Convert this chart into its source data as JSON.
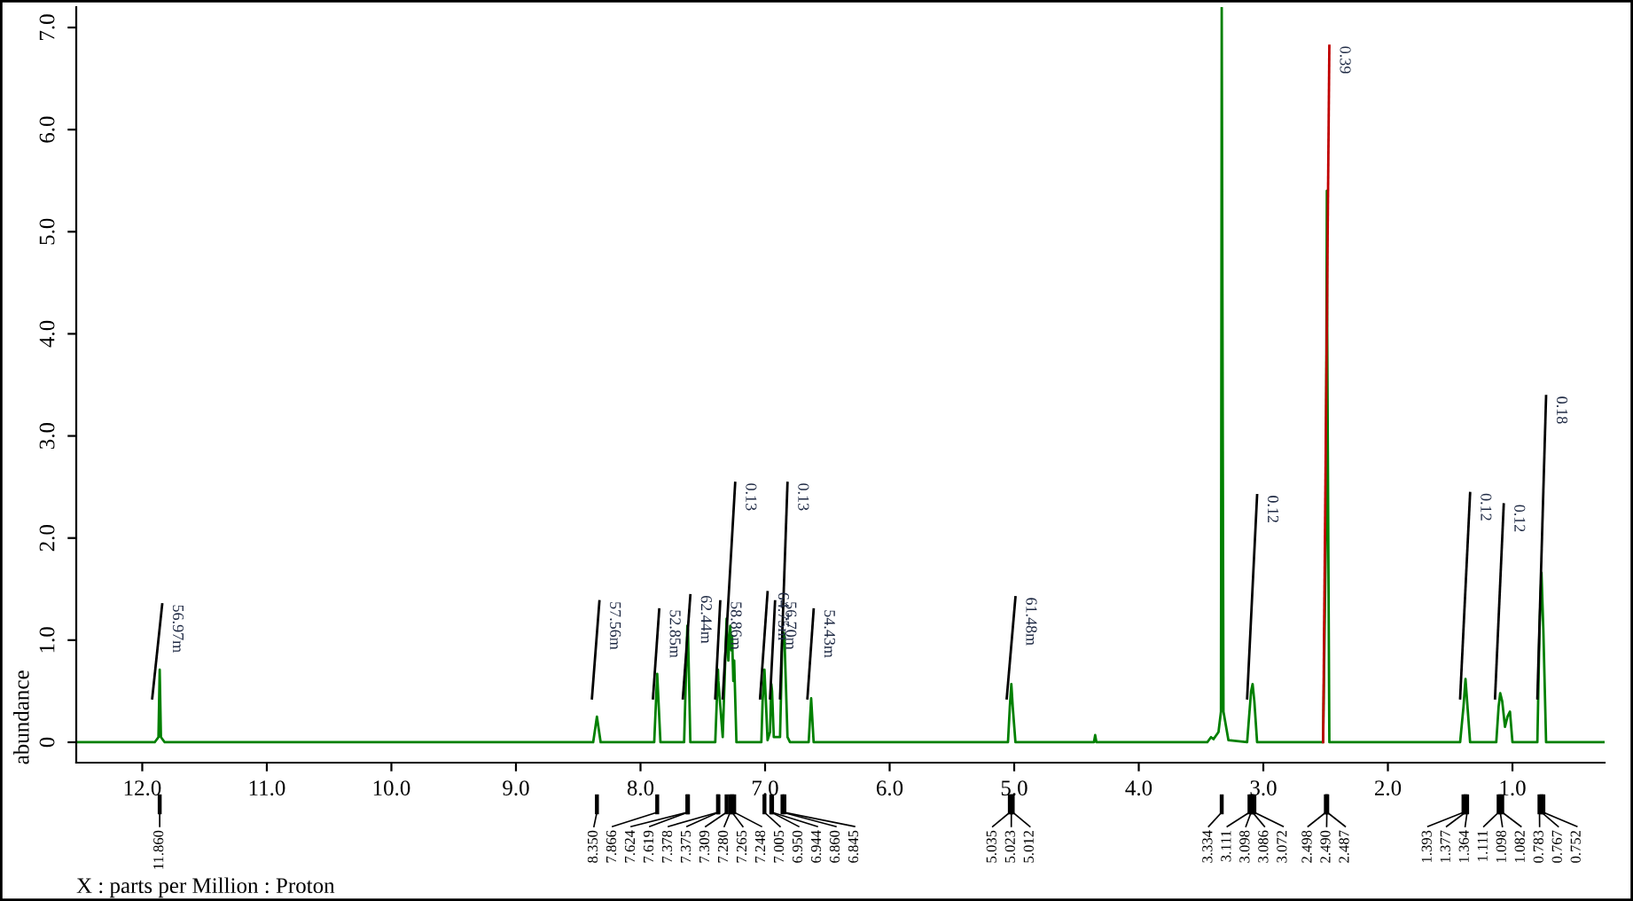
{
  "chart_data": {
    "type": "line",
    "xlabel": "X : parts per Million : Proton",
    "ylabel": "abundance",
    "xlim": [
      12.53,
      0.26
    ],
    "xticks": [
      {
        "value": 12,
        "label": "12.0"
      },
      {
        "value": 11,
        "label": "11.0"
      },
      {
        "value": 10,
        "label": "10.0"
      },
      {
        "value": 9,
        "label": "9.0"
      },
      {
        "value": 8,
        "label": "8.0"
      },
      {
        "value": 7,
        "label": "7.0"
      },
      {
        "value": 6,
        "label": "6.0"
      },
      {
        "value": 5,
        "label": "5.0"
      },
      {
        "value": 4,
        "label": "4.0"
      },
      {
        "value": 3,
        "label": "3.0"
      },
      {
        "value": 2,
        "label": "2.0"
      },
      {
        "value": 1,
        "label": "1.0"
      }
    ],
    "ylim": [
      -0.2,
      7.2
    ],
    "yticks": [
      0,
      {
        "value": 1,
        "label": "1.0"
      },
      {
        "value": 2,
        "label": "2.0"
      },
      {
        "value": 3,
        "label": "3.0"
      },
      {
        "value": 4,
        "label": "4.0"
      },
      {
        "value": 5,
        "label": "5.0"
      },
      {
        "value": 6,
        "label": "6.0"
      },
      {
        "value": 7,
        "label": "7.0"
      }
    ],
    "grid": false,
    "marker": "none",
    "line_style": "solid",
    "series": [
      {
        "color": "#008000",
        "x": [
          12.53,
          11.9,
          11.87,
          11.86,
          11.85,
          11.82,
          8.38,
          8.35,
          8.32,
          7.89,
          7.866,
          7.84,
          7.65,
          7.624,
          7.619,
          7.6,
          7.4,
          7.378,
          7.375,
          7.34,
          7.309,
          7.295,
          7.28,
          7.27,
          7.265,
          7.255,
          7.248,
          7.23,
          7.03,
          7.02,
          7.005,
          6.99,
          6.98,
          6.96,
          6.95,
          6.944,
          6.93,
          6.88,
          6.86,
          6.845,
          6.82,
          6.8,
          6.65,
          6.63,
          6.61,
          5.05,
          5.035,
          5.023,
          5.012,
          4.99,
          4.36,
          4.35,
          4.34,
          3.45,
          3.42,
          3.4,
          3.36,
          3.34,
          3.334,
          3.32,
          3.28,
          3.13,
          3.111,
          3.098,
          3.086,
          3.072,
          3.05,
          2.52,
          2.498,
          2.49,
          2.487,
          2.47,
          1.42,
          1.393,
          1.377,
          1.364,
          1.34,
          1.13,
          1.111,
          1.098,
          1.082,
          1.06,
          1.04,
          1.02,
          1.0,
          0.8,
          0.783,
          0.767,
          0.752,
          0.73,
          0.26
        ],
        "values": [
          0,
          0,
          0.05,
          0.71,
          0.05,
          0,
          0,
          0.25,
          0,
          0,
          0.67,
          0,
          0,
          1.14,
          1.1,
          0,
          0,
          0.71,
          0.6,
          0.05,
          1.21,
          0.8,
          1.14,
          0.9,
          1.04,
          0.6,
          0.8,
          0,
          0,
          0.4,
          0.71,
          0.3,
          0.02,
          0.1,
          0.57,
          0.5,
          0.05,
          0.05,
          1.09,
          1.05,
          0.05,
          0,
          0,
          0.43,
          0,
          0,
          0.35,
          0.57,
          0.35,
          0,
          0,
          0.07,
          0,
          0,
          0.05,
          0.03,
          0.1,
          0.3,
          7.2,
          0.3,
          0.02,
          0,
          0.3,
          0.5,
          0.57,
          0.4,
          0,
          0,
          2.0,
          5.4,
          4.0,
          0,
          0,
          0.35,
          0.62,
          0.4,
          0,
          0,
          0.35,
          0.48,
          0.4,
          0.15,
          0.25,
          0.3,
          0,
          0,
          1.1,
          1.66,
          1.1,
          0,
          0
        ]
      },
      {
        "color": "#000000",
        "x": [
          11.92,
          11.84
        ],
        "values": [
          0.43,
          1.35
        ]
      },
      {
        "color": "#000000",
        "x": [
          8.39,
          8.33
        ],
        "values": [
          0.43,
          1.38
        ]
      },
      {
        "color": "#000000",
        "x": [
          7.9,
          7.85
        ],
        "values": [
          0.43,
          1.3
        ]
      },
      {
        "color": "#000000",
        "x": [
          7.66,
          7.6
        ],
        "values": [
          0.43,
          1.44
        ]
      },
      {
        "color": "#000000",
        "x": [
          7.4,
          7.36
        ],
        "values": [
          0.43,
          1.38
        ]
      },
      {
        "color": "#000000",
        "x": [
          7.34,
          7.24
        ],
        "values": [
          0.43,
          2.54
        ]
      },
      {
        "color": "#000000",
        "x": [
          7.04,
          6.98
        ],
        "values": [
          0.43,
          1.47
        ]
      },
      {
        "color": "#000000",
        "x": [
          6.96,
          6.92
        ],
        "values": [
          0.43,
          1.38
        ]
      },
      {
        "color": "#000000",
        "x": [
          6.88,
          6.82
        ],
        "values": [
          0.43,
          2.54
        ]
      },
      {
        "color": "#000000",
        "x": [
          6.66,
          6.61
        ],
        "values": [
          0.43,
          1.3
        ]
      },
      {
        "color": "#000000",
        "x": [
          5.06,
          4.99
        ],
        "values": [
          0.43,
          1.42
        ]
      },
      {
        "color": "#000000",
        "x": [
          3.13,
          3.05
        ],
        "values": [
          0.43,
          2.42
        ]
      },
      {
        "color": "#c00000",
        "x": [
          2.52,
          2.47
        ],
        "values": [
          0,
          6.82
        ]
      },
      {
        "color": "#000000",
        "x": [
          1.42,
          1.34
        ],
        "values": [
          0.43,
          2.44
        ]
      },
      {
        "color": "#000000",
        "x": [
          1.14,
          1.07
        ],
        "values": [
          0.43,
          2.33
        ]
      },
      {
        "color": "#000000",
        "x": [
          0.8,
          0.73
        ],
        "values": [
          0.43,
          3.39
        ]
      }
    ],
    "annotations": [
      {
        "text": "56.97m",
        "x": 11.84,
        "y": 1.35
      },
      {
        "text": "57.56m",
        "x": 8.33,
        "y": 1.38
      },
      {
        "text": "52.85m",
        "x": 7.85,
        "y": 1.3
      },
      {
        "text": "62.44m",
        "x": 7.6,
        "y": 1.44
      },
      {
        "text": "58.86m",
        "x": 7.36,
        "y": 1.38
      },
      {
        "text": "0.13",
        "x": 7.24,
        "y": 2.54
      },
      {
        "text": "64.75m",
        "x": 6.98,
        "y": 1.47
      },
      {
        "text": "56.70m",
        "x": 6.92,
        "y": 1.38
      },
      {
        "text": "0.13",
        "x": 6.82,
        "y": 2.54
      },
      {
        "text": "54.43m",
        "x": 6.61,
        "y": 1.3
      },
      {
        "text": "61.48m",
        "x": 4.99,
        "y": 1.42
      },
      {
        "text": "0.12",
        "x": 3.05,
        "y": 2.42
      },
      {
        "text": "0.39",
        "x": 2.47,
        "y": 6.82
      },
      {
        "text": "0.12",
        "x": 1.34,
        "y": 2.44
      },
      {
        "text": "0.12",
        "x": 1.07,
        "y": 2.33
      },
      {
        "text": "0.18",
        "x": 0.73,
        "y": 3.39
      },
      {
        "text": "11.860",
        "x": 11.86
      },
      {
        "text": "8.350",
        "x": 8.35
      },
      {
        "text": "7.866",
        "x": 7.866
      },
      {
        "text": "7.624",
        "x": 7.624
      },
      {
        "text": "7.619",
        "x": 7.619
      },
      {
        "text": "7.378",
        "x": 7.378
      },
      {
        "text": "7.375",
        "x": 7.375
      },
      {
        "text": "7.309",
        "x": 7.309
      },
      {
        "text": "7.280",
        "x": 7.28
      },
      {
        "text": "7.265",
        "x": 7.265
      },
      {
        "text": "7.248",
        "x": 7.248
      },
      {
        "text": "7.005",
        "x": 7.005
      },
      {
        "text": "6.950",
        "x": 6.95
      },
      {
        "text": "6.944",
        "x": 6.944
      },
      {
        "text": "6.860",
        "x": 6.86
      },
      {
        "text": "6.845",
        "x": 6.845
      },
      {
        "text": "5.035",
        "x": 5.035
      },
      {
        "text": "5.023",
        "x": 5.023
      },
      {
        "text": "5.012",
        "x": 5.012
      },
      {
        "text": "3.334",
        "x": 3.334
      },
      {
        "text": "3.111",
        "x": 3.111
      },
      {
        "text": "3.098",
        "x": 3.098
      },
      {
        "text": "3.086",
        "x": 3.086
      },
      {
        "text": "3.072",
        "x": 3.072
      },
      {
        "text": "2.498",
        "x": 2.498
      },
      {
        "text": "2.490",
        "x": 2.49
      },
      {
        "text": "2.487",
        "x": 2.487
      },
      {
        "text": "1.393",
        "x": 1.393
      },
      {
        "text": "1.377",
        "x": 1.377
      },
      {
        "text": "1.364",
        "x": 1.364
      },
      {
        "text": "1.111",
        "x": 1.111
      },
      {
        "text": "1.098",
        "x": 1.098
      },
      {
        "text": "1.082",
        "x": 1.082
      },
      {
        "text": "0.783",
        "x": 0.783
      },
      {
        "text": "0.767",
        "x": 0.767
      },
      {
        "text": "0.752",
        "x": 0.752
      }
    ]
  }
}
